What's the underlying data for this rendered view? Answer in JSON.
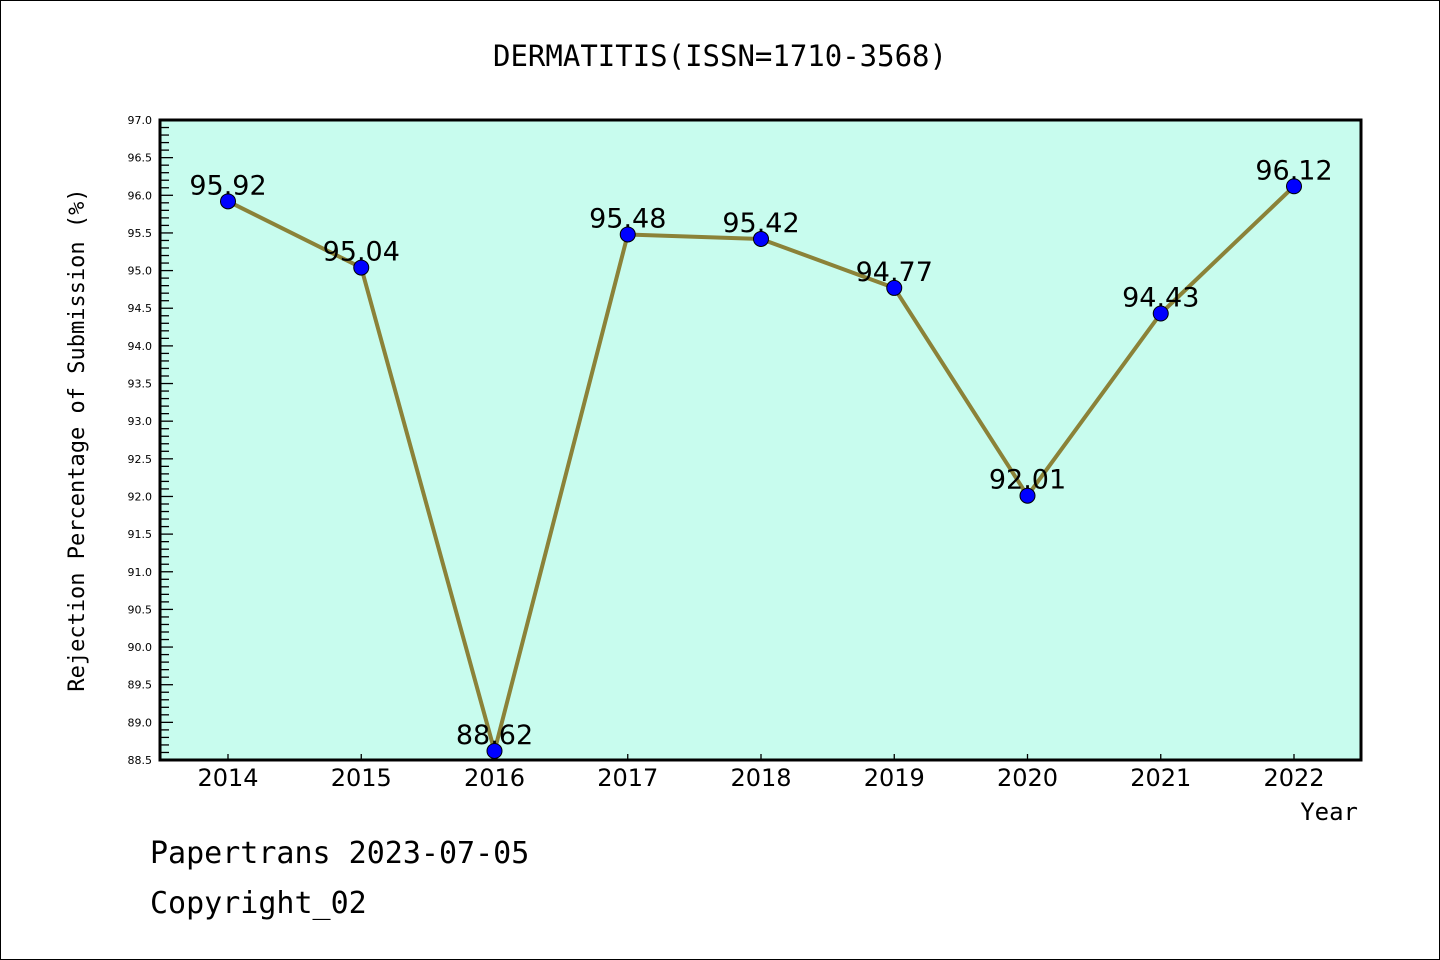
{
  "chart_data": {
    "type": "line",
    "title": "DERMATITIS(ISSN=1710-3568)",
    "xlabel": "Year",
    "ylabel": "Rejection Percentage of Submission (%)",
    "categories": [
      "2014",
      "2015",
      "2016",
      "2017",
      "2018",
      "2019",
      "2020",
      "2021",
      "2022"
    ],
    "values": [
      95.92,
      95.04,
      88.62,
      95.48,
      95.42,
      94.77,
      92.01,
      94.43,
      96.12
    ],
    "data_labels": [
      "95.92",
      "95.04",
      "88.62",
      "95.48",
      "95.42",
      "94.77",
      "92.01",
      "94.43",
      "96.12"
    ],
    "ylim": [
      88.5,
      97.0
    ],
    "yticks": [
      "88.5",
      "89.0",
      "89.5",
      "90.0",
      "90.5",
      "91.0",
      "91.5",
      "92.0",
      "92.5",
      "93.0",
      "93.5",
      "94.0",
      "94.5",
      "95.0",
      "95.5",
      "96.0",
      "96.5",
      "97.0"
    ],
    "grid": false,
    "colors": {
      "background": "#c8fcee",
      "line": "#8b8238",
      "marker": "#0000ff"
    }
  },
  "footer": {
    "line1": "Papertrans 2023-07-05",
    "line2": "Copyright_02"
  }
}
